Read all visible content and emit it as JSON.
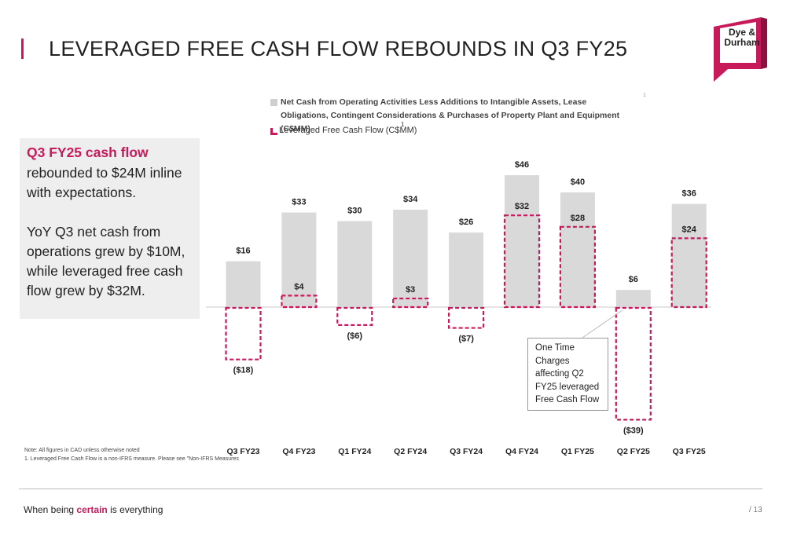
{
  "title": "LEVERAGED FREE CASH FLOW REBOUNDS IN Q3 FY25",
  "logo": {
    "line1": "Dye &",
    "line2": "Durham"
  },
  "callout": {
    "headline": "Q3 FY25 cash flow",
    "text1": "rebounded to $24M inline with expectations.",
    "text2": "YoY Q3 net cash from operations grew by $10M, while leveraged free cash flow grew by $32M."
  },
  "legend": {
    "gray_series": "Net Cash from Operating Activities Less Additions to Intangible Assets, Lease Obligations, Contingent Considerations & Purchases of Property Plant and Equipment (C$MM)",
    "pink_series": "Leveraged Free Cash Flow (C$MM)",
    "pink_superscript": "1",
    "stray_mark": "1"
  },
  "annotation": "One Time Charges affecting Q2 FY25 leveraged Free Cash Flow",
  "notes": {
    "line1": "Note: All figures in CAD unless otherwise noted",
    "line2": "1. Leveraged Free Cash Flow is a non-IFRS measure. Please see \"Non-IFRS Measures"
  },
  "footer": {
    "pre": "When being ",
    "emphasis": "certain",
    "post": " is everything",
    "page": "/ 13"
  },
  "colors": {
    "accent": "#c8195a",
    "bar": "#d9d9d9",
    "logo": "#c8195a"
  },
  "chart_data": {
    "type": "bar",
    "categories": [
      "Q3 FY23",
      "Q4 FY23",
      "Q1 FY24",
      "Q2 FY24",
      "Q3 FY24",
      "Q4 FY24",
      "Q1 FY25",
      "Q2 FY25",
      "Q3 FY25"
    ],
    "series": [
      {
        "name": "Net Cash from Operating Activities Less Additions to Intangible Assets, Lease Obligations, Contingent Considerations & Purchases of Property Plant and Equipment (C$MM)",
        "style": "solid-gray",
        "values": [
          16,
          33,
          30,
          34,
          26,
          46,
          40,
          6,
          36
        ],
        "labels": [
          "$16",
          "$33",
          "$30",
          "$34",
          "$26",
          "$46",
          "$40",
          "$6",
          "$36"
        ]
      },
      {
        "name": "Leveraged Free Cash Flow (C$MM)",
        "style": "dashed-pink-outline",
        "values": [
          -18,
          4,
          -6,
          3,
          -7,
          32,
          28,
          -39,
          24
        ],
        "labels": [
          "($18)",
          "$4",
          "($6)",
          "$3",
          "($7)",
          "$32",
          "$28",
          "($39)",
          "$24"
        ]
      }
    ],
    "ylim": [
      -39,
      46
    ],
    "grid": false,
    "legend": "top"
  }
}
